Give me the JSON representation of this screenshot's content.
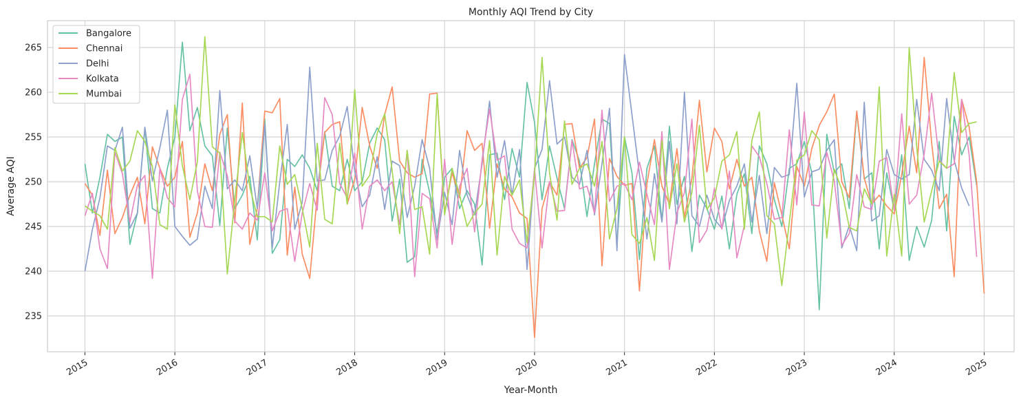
{
  "chart_data": {
    "type": "line",
    "title": "Monthly AQI Trend by City",
    "xlabel": "Year-Month",
    "ylabel": "Average AQI",
    "x_start": "2015-01",
    "x_step": "month",
    "xlim": [
      "2014-08",
      "2025-05"
    ],
    "ylim": [
      231,
      268
    ],
    "xticks": [
      "2015",
      "2016",
      "2017",
      "2018",
      "2019",
      "2020",
      "2021",
      "2022",
      "2023",
      "2024",
      "2025"
    ],
    "yticks": [
      235,
      240,
      245,
      250,
      255,
      260,
      265
    ],
    "grid": true,
    "legend": "top-left",
    "series": [
      {
        "name": "Bangalore",
        "color": "#66c2a5",
        "values": [
          252,
          246.5,
          250.5,
          255.3,
          254.5,
          255,
          243,
          246.5,
          256,
          247,
          246.5,
          251.5,
          255,
          265.6,
          255.7,
          258.3,
          254,
          252.9,
          245.1,
          256,
          247,
          248.5,
          250.6,
          243.5,
          257,
          242,
          243.5,
          252.5,
          251.7,
          253,
          251.5,
          249,
          255.6,
          249.5,
          249,
          252.5,
          249,
          250,
          254.3,
          256,
          254.7,
          245.6,
          250.3,
          241,
          241.6,
          252.5,
          248.8,
          244.2,
          250.5,
          251.5,
          247,
          249,
          247.5,
          240.7,
          253,
          253.2,
          248,
          253.7,
          250.5,
          261.1,
          256.6,
          248,
          254,
          250.4,
          247,
          254.7,
          252.3,
          246.1,
          252,
          257,
          256.5,
          243,
          255,
          251,
          241.3,
          251.5,
          254,
          245.6,
          256.2,
          247.5,
          250.6,
          242.2,
          248.5,
          247,
          244.7,
          248.4,
          242.5,
          248.6,
          250.9,
          244.2,
          254,
          252,
          248,
          245,
          251.5,
          252,
          254.5,
          251,
          235.7,
          255.3,
          251,
          252,
          247,
          257.7,
          250.3,
          251,
          242.5,
          251,
          246.8,
          253,
          241.2,
          245,
          242.7,
          245.7,
          254.5,
          244.5,
          257.3,
          253,
          255,
          249.6
        ]
      },
      {
        "name": "Chennai",
        "color": "#fc8d62",
        "values": [
          249.8,
          248.5,
          244,
          251.3,
          244.2,
          246,
          248.5,
          250.5,
          245.3,
          253.9,
          251.5,
          249.5,
          250.5,
          254.5,
          243.8,
          246.5,
          252,
          249,
          255.3,
          257.5,
          245.4,
          258.8,
          243,
          247,
          257.9,
          257.7,
          259.3,
          241.8,
          249.4,
          241.9,
          239.2,
          248.5,
          255.5,
          256.4,
          256.7,
          247.5,
          250.3,
          258.3,
          254,
          251.5,
          257.5,
          260.6,
          252.3,
          251,
          250.5,
          250.9,
          259.8,
          259.9,
          246.5,
          251,
          248.2,
          255.7,
          253.5,
          254.3,
          244.8,
          252,
          249.2,
          248.3,
          246.5,
          245.9,
          232.6,
          247,
          250,
          248.5,
          256.4,
          256.5,
          251.5,
          252.7,
          257,
          240.6,
          252.6,
          250.6,
          249.6,
          249.8,
          237.8,
          249.8,
          254.7,
          249.5,
          247.5,
          253.7,
          246,
          250.4,
          259.1,
          251.1,
          256,
          254.5,
          249.2,
          252.5,
          249.5,
          250.5,
          244.5,
          241.1,
          249.9,
          246.3,
          242.5,
          251.7,
          249.5,
          253.7,
          256.3,
          257.8,
          259.8,
          250,
          248.2,
          257.9,
          250.4,
          247.5,
          248.5,
          247.3,
          246.4,
          250.8,
          256.2,
          251,
          263.9,
          254.3,
          247,
          248.6,
          239.4,
          259.2,
          256.1,
          250,
          237.5
        ]
      },
      {
        "name": "Delhi",
        "color": "#8da0cb",
        "values": [
          240,
          244.7,
          248.2,
          254,
          253.5,
          256.1,
          244.8,
          246.5,
          256.1,
          250.1,
          253.8,
          258,
          245,
          243.9,
          242.9,
          243.6,
          249.5,
          247,
          260.2,
          249.2,
          250.2,
          249,
          252.9,
          247,
          256.4,
          242.6,
          250,
          256.4,
          244.7,
          247.7,
          262.8,
          250.1,
          250.2,
          253.5,
          255.1,
          258.4,
          251.2,
          247.2,
          248.5,
          252.8,
          246.9,
          252.3,
          251.8,
          246,
          249.5,
          254.7,
          251.5,
          243.5,
          248.8,
          245.2,
          253.5,
          248.5,
          246.3,
          252,
          259,
          250.5,
          254.6,
          248.5,
          253.6,
          240.2,
          251.5,
          253.6,
          261.3,
          254.2,
          255,
          250.5,
          249.7,
          253.5,
          246.3,
          252,
          258.2,
          242.3,
          264.2,
          257.5,
          250.8,
          243.6,
          250.9,
          245.5,
          254.5,
          245.3,
          260,
          246.2,
          245,
          248.5,
          245.8,
          244.8,
          247.9,
          249.5,
          252,
          245.5,
          250.7,
          244.2,
          251.6,
          250.5,
          250.8,
          261,
          248.3,
          251.1,
          251.4,
          253.5,
          254.7,
          242.6,
          245.1,
          242.3,
          258.9,
          245.6,
          246.2,
          253.6,
          250.8,
          250.3,
          250.8,
          259.2,
          252.5,
          251.3,
          249,
          259.3,
          252.4,
          249.3,
          247.3
        ]
      },
      {
        "name": "Kolkata",
        "color": "#e78ac3",
        "values": [
          246.2,
          248.7,
          242.5,
          240.3,
          253.3,
          250.9,
          245.5,
          249.6,
          250.7,
          239.2,
          251.5,
          248.2,
          247.2,
          259.2,
          262,
          249,
          245,
          244.9,
          253.3,
          250.7,
          245.6,
          244.7,
          246.5,
          245.7,
          251,
          244.5,
          246.7,
          247,
          241.1,
          246.5,
          249.8,
          246.8,
          259.4,
          257.5,
          249.8,
          248.2,
          253.2,
          244.7,
          249.5,
          250.2,
          249,
          250,
          245.2,
          253.5,
          239.4,
          248.7,
          248.1,
          242.6,
          252.5,
          243,
          249.5,
          251.5,
          244.4,
          252.5,
          258.1,
          252.4,
          252.9,
          244.7,
          243.1,
          242.6,
          251.4,
          242.6,
          250,
          246.7,
          246.8,
          254.6,
          249.2,
          249.5,
          246.5,
          258,
          247.8,
          249.5,
          249.8,
          248,
          252.2,
          248.6,
          245.2,
          255.6,
          240.2,
          246.5,
          248.8,
          257,
          243.2,
          244.6,
          249.3,
          244.7,
          251.2,
          241.5,
          245.1,
          254,
          252.8,
          249.8,
          245.8,
          246,
          255.8,
          247.4,
          257.8,
          247.4,
          247.3,
          253.3,
          250.1,
          242.9,
          244.2,
          250.8,
          247.2,
          246.9,
          252.3,
          252.7,
          246.8,
          257.6,
          247.5,
          248.5,
          253.1,
          259.9,
          252.4,
          251.5,
          252,
          259.2,
          253,
          241.6
        ]
      },
      {
        "name": "Mumbai",
        "color": "#a6d854",
        "values": [
          247.3,
          246.7,
          246.2,
          244.7,
          253.8,
          251.2,
          252.3,
          255.7,
          254.5,
          251.7,
          245.2,
          244.7,
          258.6,
          251.8,
          248,
          252.2,
          266.2,
          253.9,
          253.2,
          239.7,
          248,
          255.5,
          249.4,
          246.1,
          246.1,
          245.5,
          254,
          249.7,
          250.8,
          247,
          242.7,
          254.3,
          245.8,
          245.3,
          254.3,
          247.5,
          260.3,
          249.5,
          250.7,
          255.4,
          257.6,
          251.2,
          244.2,
          253.5,
          246.9,
          247.2,
          241.9,
          259.8,
          246.3,
          251.5,
          248.5,
          245,
          246.5,
          247.5,
          254.6,
          241.8,
          250.6,
          248.5,
          250.2,
          243.2,
          250.8,
          263.9,
          251,
          245.7,
          256.8,
          249.7,
          251.5,
          252,
          249.5,
          254.5,
          243.6,
          247,
          255,
          244.1,
          243.1,
          246,
          241.2,
          254.6,
          247,
          252,
          245.5,
          248.8,
          256.3,
          246.9,
          248.2,
          252.3,
          253,
          255.6,
          244.7,
          254.6,
          257.8,
          246.2,
          245.3,
          238.4,
          245.5,
          252.4,
          253,
          255.7,
          254.7,
          243.7,
          251.4,
          249.1,
          244.9,
          244.5,
          249.2,
          247.5,
          260.6,
          241.7,
          248.6,
          241.7,
          265,
          253.9,
          245.5,
          249,
          252.3,
          251.5,
          262.2,
          255.5,
          256.5,
          256.7
        ]
      }
    ]
  }
}
